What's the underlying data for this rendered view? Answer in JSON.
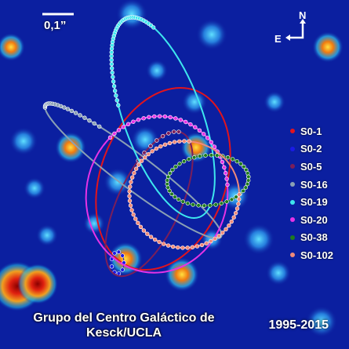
{
  "title": "",
  "scale_bar": {
    "label": "0,1”"
  },
  "compass": {
    "north": "N",
    "east": "E"
  },
  "credit": {
    "line1": "Grupo del Centro Galáctico de",
    "line2": "Kesck/UCLA"
  },
  "years": "1995-2015",
  "background_color": "#0b1fa0",
  "stars": [
    {
      "name": "S0-1",
      "color": "#e0141e"
    },
    {
      "name": "S0-2",
      "color": "#1a1ae6"
    },
    {
      "name": "S0-5",
      "color": "#7a1e5a"
    },
    {
      "name": "S0-16",
      "color": "#8aa0b4"
    },
    {
      "name": "S0-19",
      "color": "#3ee6ee"
    },
    {
      "name": "S0-20",
      "color": "#e633e6"
    },
    {
      "name": "S0-38",
      "color": "#1e7a1e"
    },
    {
      "name": "S0-102",
      "color": "#f08a7a"
    }
  ]
}
